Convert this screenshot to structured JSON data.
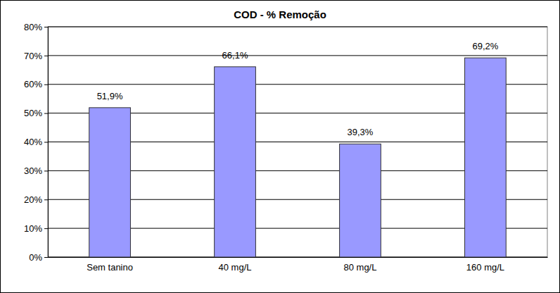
{
  "chart_data": {
    "type": "bar",
    "title": "COD - % Remoção",
    "categories": [
      "Sem tanino",
      "40 mg/L",
      "80 mg/L",
      "160 mg/L"
    ],
    "values": [
      51.9,
      66.1,
      39.3,
      69.2
    ],
    "value_labels": [
      "51,9%",
      "66,1%",
      "39,3%",
      "69,2%"
    ],
    "color": "#9999ff",
    "ylim": [
      0,
      80
    ],
    "yticks": [
      {
        "value": 0,
        "label": "0%"
      },
      {
        "value": 10,
        "label": "10%"
      },
      {
        "value": 20,
        "label": "20%"
      },
      {
        "value": 30,
        "label": "30%"
      },
      {
        "value": 40,
        "label": "40%"
      },
      {
        "value": 50,
        "label": "50%"
      },
      {
        "value": 60,
        "label": "60%"
      },
      {
        "value": 70,
        "label": "70%"
      },
      {
        "value": 80,
        "label": "80%"
      }
    ],
    "grid": true,
    "data_labels": true
  }
}
